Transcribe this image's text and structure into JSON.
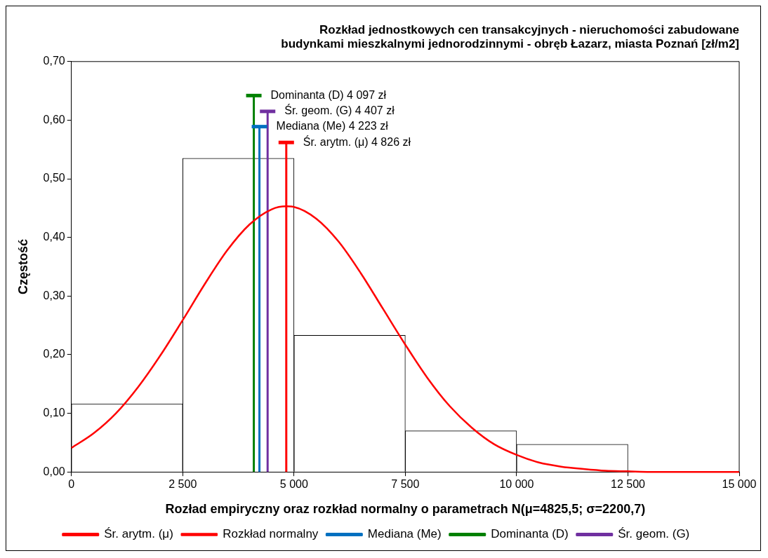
{
  "chart_data": {
    "type": "histogram",
    "title": "Rozkład jednostkowych cen transakcyjnych - nieruchomości zabudowane\nbudynkami mieszkalnymi jednorodzinnymi - obręb Łazarz, miasta Poznań [zł/m2]",
    "xlabel": "Rozład empiryczny oraz rozkład normalny o parametrach N(μ=4825,5; σ=2200,7)",
    "ylabel": "Częstość",
    "bins": [
      0,
      2500,
      5000,
      7500,
      10000,
      12500
    ],
    "values": [
      0.116,
      0.535,
      0.233,
      0.07,
      0.047
    ],
    "color": "#ffffff",
    "series": [
      {
        "name": "Śr. arytm. (μ)",
        "type": "line",
        "color": "#ff0000",
        "x": [
          4826,
          4826
        ],
        "values": [
          0,
          0.562
        ]
      },
      {
        "name": "Rozkład normalny",
        "type": "line",
        "color": "#ff0000",
        "x": [
          0,
          500,
          1000,
          1500,
          2000,
          2500,
          3000,
          3500,
          4000,
          4500,
          4826,
          5000,
          5500,
          6000,
          6500,
          7000,
          7500,
          8000,
          8500,
          9000,
          9500,
          10000,
          10500,
          11000,
          11500,
          12000,
          12500,
          13000,
          14000,
          15000
        ],
        "values": [
          0.041,
          0.066,
          0.1,
          0.145,
          0.199,
          0.259,
          0.321,
          0.378,
          0.422,
          0.448,
          0.453,
          0.452,
          0.432,
          0.393,
          0.339,
          0.278,
          0.217,
          0.16,
          0.112,
          0.075,
          0.047,
          0.029,
          0.016,
          0.009,
          0.005,
          0.002,
          0.001,
          0,
          0,
          0
        ]
      },
      {
        "name": "Mediana (Me)",
        "type": "line",
        "color": "#0070c0",
        "x": [
          4223,
          4223
        ],
        "values": [
          0,
          0.589
        ]
      },
      {
        "name": "Dominanta (D)",
        "type": "line",
        "color": "#008000",
        "x": [
          4097,
          4097
        ],
        "values": [
          0,
          0.642
        ]
      },
      {
        "name": "Śr. geom. (G)",
        "type": "line",
        "color": "#7030a0",
        "x": [
          4407,
          4407
        ],
        "values": [
          0,
          0.615
        ]
      }
    ],
    "annotations": [
      {
        "text": "Dominanta (D) 4 097 zł",
        "x": 4097,
        "y": 0.642
      },
      {
        "text": "Śr. geom. (G) 4 407 zł",
        "x": 4407,
        "y": 0.615
      },
      {
        "text": "Mediana (Me) 4 223 zł",
        "x": 4223,
        "y": 0.589
      },
      {
        "text": "Śr. arytm. (μ) 4 826 zł",
        "x": 4826,
        "y": 0.562
      }
    ],
    "xlim": [
      0,
      15000
    ],
    "xticks": [
      0,
      {
        "value": 2500,
        "label": "2 500"
      },
      {
        "value": 5000,
        "label": "5 000"
      },
      {
        "value": 7500,
        "label": "7 500"
      },
      {
        "value": 10000,
        "label": "10 000"
      },
      {
        "value": 12500,
        "label": "12 500"
      },
      {
        "value": 15000,
        "label": "15 000"
      }
    ],
    "ylim": [
      0,
      0.7
    ],
    "yticks": [
      {
        "value": 0,
        "label": "0,00"
      },
      {
        "value": 0.1,
        "label": "0,10"
      },
      {
        "value": 0.2,
        "label": "0,20"
      },
      {
        "value": 0.3,
        "label": "0,30"
      },
      {
        "value": 0.4,
        "label": "0,40"
      },
      {
        "value": 0.5,
        "label": "0,50"
      },
      {
        "value": 0.6,
        "label": "0,60"
      },
      {
        "value": 0.7,
        "label": "0,70"
      }
    ],
    "grid": false,
    "legend": "bottom"
  }
}
